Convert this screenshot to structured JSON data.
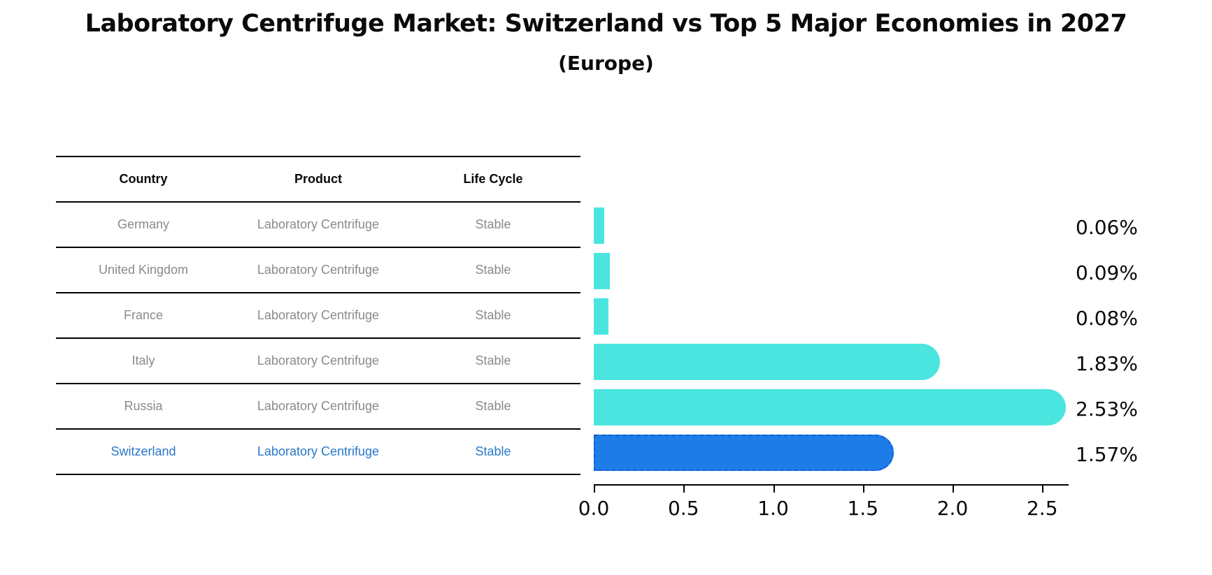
{
  "title": "Laboratory Centrifuge Market: Switzerland vs Top 5 Major Economies in 2027",
  "subtitle": "(Europe)",
  "table": {
    "headers": [
      "Country",
      "Product",
      "Life Cycle"
    ],
    "rows": [
      {
        "country": "Germany",
        "product": "Laboratory Centrifuge",
        "life_cycle": "Stable",
        "highlighted": false
      },
      {
        "country": "United Kingdom",
        "product": "Laboratory Centrifuge",
        "life_cycle": "Stable",
        "highlighted": false
      },
      {
        "country": "France",
        "product": "Laboratory Centrifuge",
        "life_cycle": "Stable",
        "highlighted": false
      },
      {
        "country": "Italy",
        "product": "Laboratory Centrifuge",
        "life_cycle": "Stable",
        "highlighted": false
      },
      {
        "country": "Russia",
        "product": "Laboratory Centrifuge",
        "life_cycle": "Stable",
        "highlighted": false
      },
      {
        "country": "Switzerland",
        "product": "Laboratory Centrifuge",
        "life_cycle": "Stable",
        "highlighted": true
      }
    ]
  },
  "chart_data": {
    "type": "bar",
    "orientation": "horizontal",
    "title": "Laboratory Centrifuge Market: Switzerland vs Top 5 Major Economies in 2027",
    "subtitle": "(Europe)",
    "categories": [
      "Germany",
      "United Kingdom",
      "France",
      "Italy",
      "Russia",
      "Switzerland"
    ],
    "values": [
      0.06,
      0.09,
      0.08,
      1.83,
      2.53,
      1.57
    ],
    "value_labels": [
      "0.06%",
      "0.09%",
      "0.08%",
      "1.83%",
      "2.53%",
      "1.57%"
    ],
    "highlight_index": 5,
    "x_ticks": [
      0.0,
      0.5,
      1.0,
      1.5,
      2.0,
      2.5
    ],
    "x_tick_labels": [
      "0.0",
      "0.5",
      "1.0",
      "1.5",
      "2.0",
      "2.5"
    ],
    "xlim": [
      0,
      2.65
    ],
    "grid": false,
    "legend": false,
    "xlabel": "",
    "ylabel": ""
  },
  "colors": {
    "bar": "#4BE5E0",
    "highlight_fill": "#1E7CE8",
    "highlight_border": "#0D5ED2",
    "highlight_text": "#2878C8",
    "table_text": "#8A8A8A",
    "text": "#0A0A0A"
  }
}
